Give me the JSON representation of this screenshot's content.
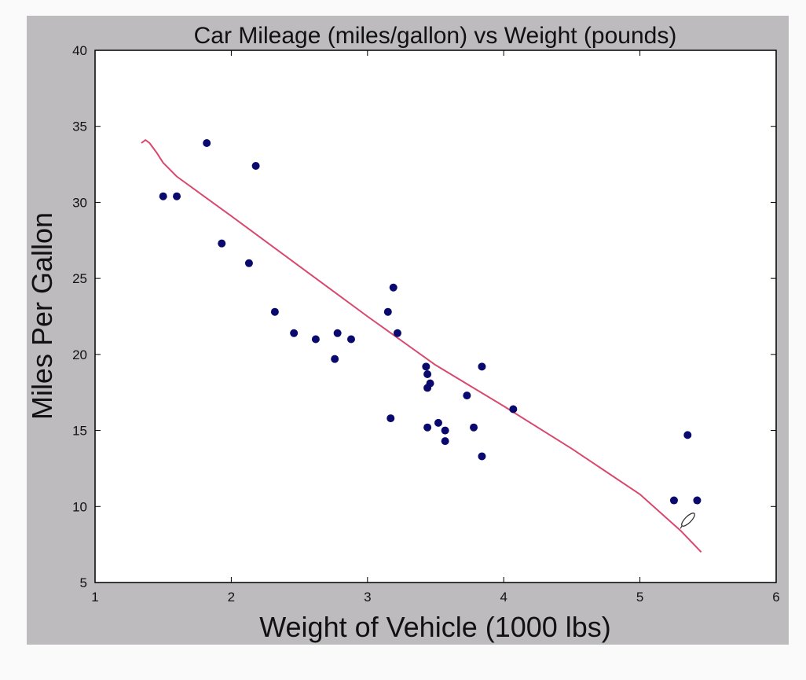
{
  "chart_data": {
    "type": "scatter",
    "title": "Car Mileage (miles/gallon) vs Weight (pounds)",
    "xlabel": "Weight of Vehicle (1000 lbs)",
    "ylabel": "Miles Per Gallon",
    "xlim": [
      1,
      6
    ],
    "ylim": [
      5,
      40
    ],
    "xticks": [
      "1",
      "2",
      "3",
      "4",
      "5",
      "6"
    ],
    "yticks": [
      "5",
      "10",
      "15",
      "20",
      "25",
      "30",
      "35",
      "40"
    ],
    "grid": false,
    "legend": "none",
    "colors": {
      "points": "#0a0a6e",
      "fit_line": "#d9486e",
      "frame": "#bdbbbe",
      "plot_bg": "#ffffff"
    },
    "series": [
      {
        "kind": "scatter",
        "x": [
          1.5,
          1.6,
          1.82,
          1.93,
          2.13,
          2.18,
          2.32,
          2.46,
          2.62,
          2.76,
          2.78,
          2.88,
          3.15,
          3.17,
          3.19,
          3.22,
          3.43,
          3.44,
          3.44,
          3.44,
          3.46,
          3.52,
          3.57,
          3.57,
          3.73,
          3.78,
          3.84,
          3.84,
          4.07,
          5.25,
          5.35,
          5.42
        ],
        "y": [
          30.4,
          30.4,
          33.9,
          27.3,
          26.0,
          32.4,
          22.8,
          21.4,
          21.0,
          19.7,
          21.4,
          21.0,
          22.8,
          15.8,
          24.4,
          21.4,
          19.2,
          18.7,
          17.8,
          15.2,
          18.1,
          15.5,
          15.0,
          14.3,
          17.3,
          15.2,
          19.2,
          13.3,
          16.4,
          10.4,
          14.7,
          10.4
        ]
      },
      {
        "kind": "line",
        "x": [
          1.34,
          1.37,
          1.4,
          1.45,
          1.5,
          1.6,
          1.8,
          2.0,
          2.5,
          3.0,
          3.5,
          4.0,
          4.5,
          5.0,
          5.3,
          5.45
        ],
        "y": [
          33.9,
          34.1,
          33.9,
          33.3,
          32.6,
          31.7,
          30.4,
          29.1,
          25.8,
          22.5,
          19.3,
          16.6,
          13.8,
          10.8,
          8.4,
          7.0
        ]
      }
    ]
  }
}
